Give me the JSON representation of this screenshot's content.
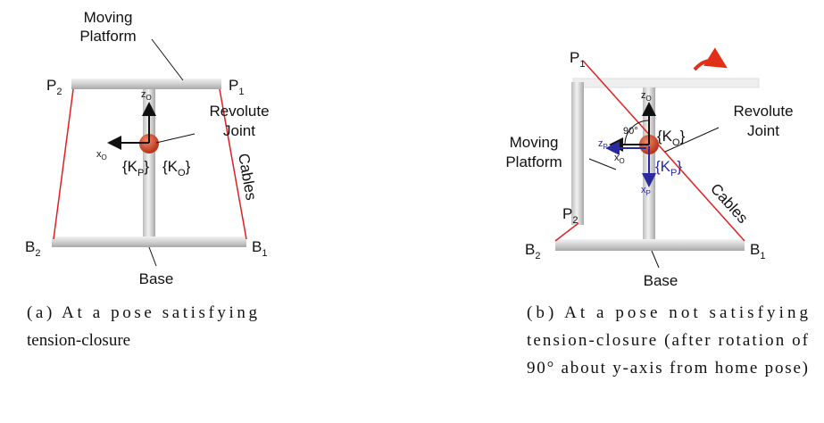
{
  "panel_a": {
    "platform_label": [
      "Moving",
      "Platform"
    ],
    "p2": {
      "text": "P",
      "sub": "2"
    },
    "p1": {
      "text": "P",
      "sub": "1"
    },
    "z_o": {
      "text": "z",
      "sub": "O"
    },
    "x_o": {
      "text": "x",
      "sub": "O"
    },
    "joint_label": [
      "Revolute",
      "Joint"
    ],
    "k_p": {
      "text": "{K",
      "sub": "P",
      "after": "}"
    },
    "k_o": {
      "text": "{K",
      "sub": "O",
      "after": "}"
    },
    "cables": "Cables",
    "b2": {
      "text": "B",
      "sub": "2"
    },
    "b1": {
      "text": "B",
      "sub": "1"
    },
    "base": "Base",
    "caption": [
      "(a) At a pose satisfying",
      "tension-closure"
    ]
  },
  "panel_b": {
    "p1": {
      "text": "P",
      "sub": "1"
    },
    "platform_label": [
      "Moving",
      "Platform"
    ],
    "p2": {
      "text": "P",
      "sub": "2"
    },
    "z_o": {
      "text": "z",
      "sub": "O"
    },
    "angle": "90°",
    "k_o": {
      "text": "{K",
      "sub": "O",
      "after": "}"
    },
    "joint_label": [
      "Revolute",
      "Joint"
    ],
    "z_p": {
      "text": "z",
      "sub": "P"
    },
    "x_o": {
      "text": "x",
      "sub": "O"
    },
    "k_p": {
      "text": "{K",
      "sub": "P",
      "after": "}"
    },
    "x_p": {
      "text": "x",
      "sub": "P"
    },
    "cables": "Cables",
    "b2": {
      "text": "B",
      "sub": "2"
    },
    "b1": {
      "text": "B",
      "sub": "1"
    },
    "base": "Base",
    "caption": [
      "(b) At a pose not satisfying",
      "tension-closure (after rotation of",
      "90° about y-axis from home pose)"
    ]
  }
}
